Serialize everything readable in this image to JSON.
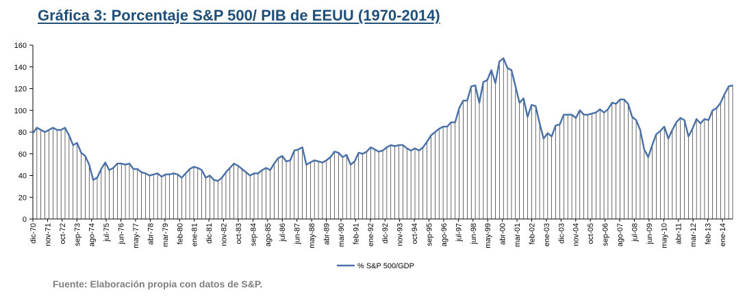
{
  "page": {
    "title": "Gráfica 3: Porcentaje S&P 500/ PIB de EEUU (1970-2014)",
    "source": "Fuente: Elaboración propia con datos de S&P."
  },
  "colors": {
    "title": "#1f4e79",
    "line": "#4a72a8",
    "drops": "#000000",
    "source": "#7f7f7f"
  },
  "chart_data": {
    "type": "line",
    "title": "",
    "xlabel": "",
    "ylabel": "",
    "ylim": [
      0,
      160
    ],
    "yticks": [
      0,
      20,
      40,
      60,
      80,
      100,
      120,
      140,
      160
    ],
    "grid": false,
    "drop_lines": true,
    "legend_position": "bottom",
    "x_tick_labels": [
      "dic-70",
      "nov-71",
      "oct-72",
      "sep-73",
      "ago-74",
      "jul-75",
      "jun-76",
      "may-77",
      "abr-78",
      "mar-79",
      "feb-80",
      "ene-81",
      "dic-81",
      "nov-82",
      "oct-83",
      "sep-84",
      "ago-85",
      "jul-86",
      "jun-87",
      "may-88",
      "abr-89",
      "mar-90",
      "feb-91",
      "ene-92",
      "dic-92",
      "nov-93",
      "oct-94",
      "sep-95",
      "ago-96",
      "jul-97",
      "jun-98",
      "may-99",
      "abr-00",
      "mar-01",
      "feb-02",
      "ene-03",
      "dic-03",
      "nov-04",
      "oct-05",
      "sep-06",
      "ago-07",
      "jul-08",
      "jun-09",
      "may-10",
      "abr-11",
      "mar-12",
      "feb-13",
      "ene-14"
    ],
    "series": [
      {
        "name": "% S&P 500/GDP",
        "values": [
          79,
          84,
          82,
          80,
          82,
          84,
          82,
          82,
          84,
          77,
          68,
          70,
          61,
          58,
          50,
          36,
          38,
          46,
          52,
          45,
          47,
          51,
          51,
          50,
          51,
          46,
          46,
          43,
          42,
          40,
          41,
          42,
          39,
          41,
          41,
          42,
          41,
          38,
          42,
          46,
          48,
          47,
          45,
          38,
          40,
          36,
          35,
          38,
          43,
          47,
          51,
          49,
          46,
          43,
          40,
          42,
          42,
          45,
          47,
          45,
          51,
          56,
          58,
          53,
          54,
          63,
          64,
          66,
          50,
          52,
          54,
          53,
          52,
          54,
          57,
          62,
          61,
          57,
          59,
          50,
          53,
          61,
          60,
          62,
          66,
          64,
          62,
          63,
          66,
          68,
          67,
          68,
          68,
          65,
          63,
          65,
          63,
          66,
          71,
          77,
          80,
          83,
          85,
          85,
          89,
          89,
          102,
          109,
          109,
          122,
          123,
          107,
          126,
          128,
          137,
          125,
          145,
          148,
          139,
          137,
          122,
          107,
          111,
          94,
          105,
          104,
          88,
          74,
          79,
          76,
          86,
          87,
          96,
          96,
          96,
          93,
          100,
          96,
          96,
          97,
          98,
          101,
          98,
          101,
          107,
          106,
          110,
          110,
          106,
          94,
          91,
          82,
          64,
          57,
          68,
          78,
          81,
          85,
          74,
          82,
          89,
          93,
          91,
          76,
          83,
          92,
          88,
          92,
          91,
          100,
          102,
          107,
          115,
          122,
          123
        ]
      }
    ]
  }
}
